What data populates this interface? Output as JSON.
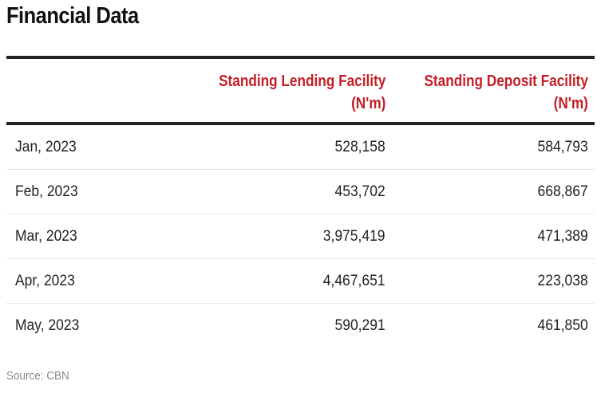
{
  "title": "Financial Data",
  "columns": {
    "lending": {
      "line1": "Standing Lending Facility",
      "line2": "(N'm)"
    },
    "deposit": {
      "line1": "Standing Deposit Facility",
      "line2": "(N'm)"
    }
  },
  "rows": [
    {
      "month": "Jan, 2023",
      "lending": "528,158",
      "deposit": "584,793"
    },
    {
      "month": "Feb, 2023",
      "lending": "453,702",
      "deposit": "668,867"
    },
    {
      "month": "Mar, 2023",
      "lending": "3,975,419",
      "deposit": "471,389"
    },
    {
      "month": "Apr, 2023",
      "lending": "4,467,651",
      "deposit": "223,038"
    },
    {
      "month": "May, 2023",
      "lending": "590,291",
      "deposit": "461,850"
    }
  ],
  "source": "Source: CBN",
  "colors": {
    "header_text": "#c41e26",
    "rule": "#222222",
    "row_divider": "#e6e6e6",
    "source_text": "#8a8a8a"
  }
}
